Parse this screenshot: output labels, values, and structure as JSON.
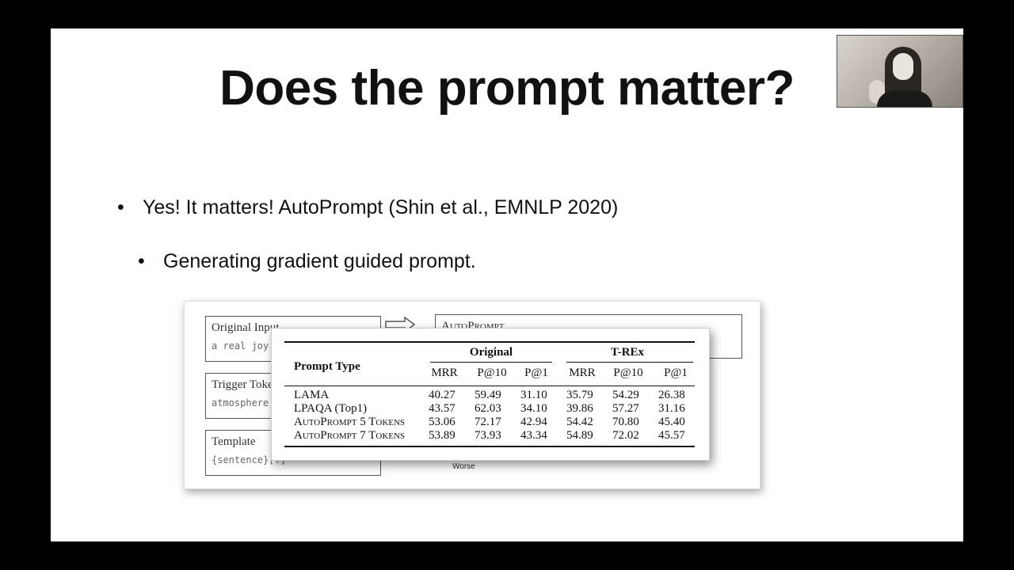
{
  "slide": {
    "title": "Does the prompt matter?",
    "bullets": [
      {
        "text": "Yes! It matters! AutoPrompt (Shin et al., EMNLP 2020)",
        "level": 1
      },
      {
        "text": "Generating gradient guided prompt.",
        "level": 2
      }
    ]
  },
  "figure": {
    "boxes": [
      {
        "label": "Original Input",
        "sub": "a real joy."
      },
      {
        "label": "Trigger Toke",
        "sub": "atmosphere, a"
      },
      {
        "label": "Template",
        "sub": "{sentence}[T]"
      },
      {
        "label": "AutoPrompt",
        "sub": ""
      }
    ],
    "worse_label": "Worse"
  },
  "table": {
    "row_header": "Prompt Type",
    "groups": [
      "Original",
      "T-REx"
    ],
    "columns": [
      "MRR",
      "P@10",
      "P@1",
      "MRR",
      "P@10",
      "P@1"
    ],
    "rows": [
      {
        "label": "LAMA",
        "values": [
          "40.27",
          "59.49",
          "31.10",
          "35.79",
          "54.29",
          "26.38"
        ]
      },
      {
        "label": "LPAQA (Top1)",
        "values": [
          "43.57",
          "62.03",
          "34.10",
          "39.86",
          "57.27",
          "31.16"
        ]
      },
      {
        "label": "AutoPrompt 5 Tokens",
        "values": [
          "53.06",
          "72.17",
          "42.94",
          "54.42",
          "70.80",
          "45.40"
        ]
      },
      {
        "label": "AutoPrompt 7 Tokens",
        "values": [
          "53.89",
          "73.93",
          "43.34",
          "54.89",
          "72.02",
          "45.57"
        ]
      }
    ]
  }
}
